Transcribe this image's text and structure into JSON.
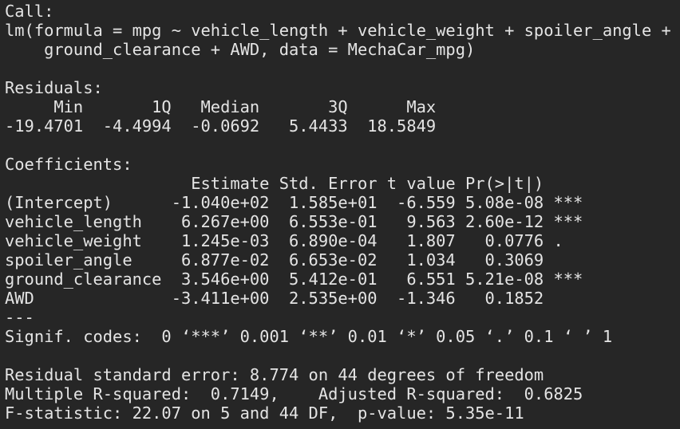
{
  "call": {
    "label": "Call:",
    "lines": [
      "lm(formula = mpg ~ vehicle_length + vehicle_weight + spoiler_angle +",
      "    ground_clearance + AWD, data = MechaCar_mpg)"
    ]
  },
  "residuals": {
    "label": "Residuals:",
    "header": "     Min       1Q   Median       3Q      Max",
    "values": "-19.4701  -4.4994  -0.0692   5.4433  18.5849"
  },
  "coefficients": {
    "label": "Coefficients:",
    "header": "                   Estimate Std. Error t value Pr(>|t|)",
    "rows": [
      "(Intercept)      -1.040e+02  1.585e+01  -6.559 5.08e-08 ***",
      "vehicle_length    6.267e+00  6.553e-01   9.563 2.60e-12 ***",
      "vehicle_weight    1.245e-03  6.890e-04   1.807   0.0776 .",
      "spoiler_angle     6.877e-02  6.653e-02   1.034   0.3069",
      "ground_clearance  3.546e+00  5.412e-01   6.551 5.21e-08 ***",
      "AWD              -3.411e+00  2.535e+00  -1.346   0.1852"
    ],
    "separator": "---",
    "signif_codes": "Signif. codes:  0 ‘***’ 0.001 ‘**’ 0.01 ‘*’ 0.05 ‘.’ 0.1 ‘ ’ 1"
  },
  "summary": [
    "Residual standard error: 8.774 on 44 degrees of freedom",
    "Multiple R-squared:  0.7149,    Adjusted R-squared:  0.6825",
    "F-statistic: 22.07 on 5 and 44 DF,  p-value: 5.35e-11"
  ]
}
